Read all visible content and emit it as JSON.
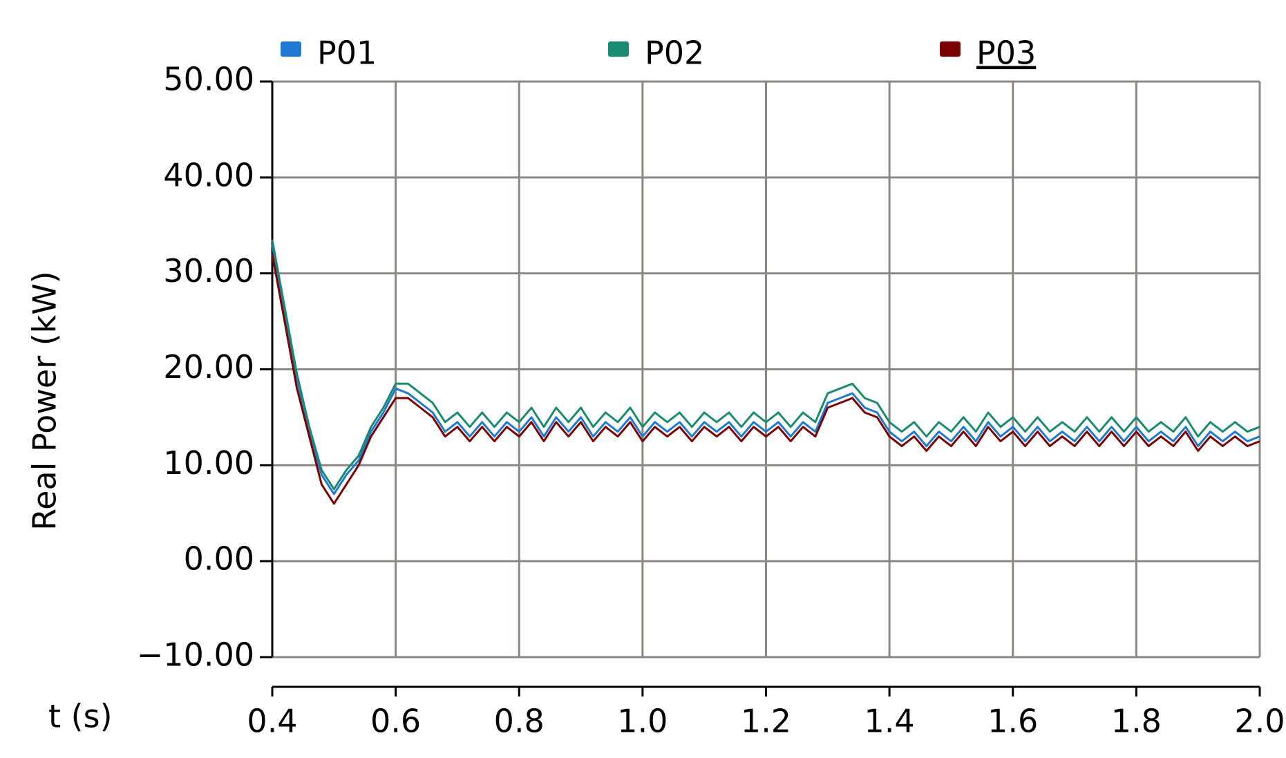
{
  "chart_data": {
    "type": "line",
    "ylabel": "Real Power (kW)",
    "xlabel": "t (s)",
    "x": [
      0.4,
      0.42,
      0.44,
      0.46,
      0.48,
      0.5,
      0.52,
      0.54,
      0.56,
      0.58,
      0.6,
      0.62,
      0.64,
      0.66,
      0.68,
      0.7,
      0.72,
      0.74,
      0.76,
      0.78,
      0.8,
      0.82,
      0.84,
      0.86,
      0.88,
      0.9,
      0.92,
      0.94,
      0.96,
      0.98,
      1.0,
      1.02,
      1.04,
      1.06,
      1.08,
      1.1,
      1.12,
      1.14,
      1.16,
      1.18,
      1.2,
      1.22,
      1.24,
      1.26,
      1.28,
      1.3,
      1.32,
      1.34,
      1.36,
      1.38,
      1.4,
      1.42,
      1.44,
      1.46,
      1.48,
      1.5,
      1.52,
      1.54,
      1.56,
      1.58,
      1.6,
      1.62,
      1.64,
      1.66,
      1.68,
      1.7,
      1.72,
      1.74,
      1.76,
      1.78,
      1.8,
      1.82,
      1.84,
      1.86,
      1.88,
      1.9,
      1.92,
      1.94,
      1.96,
      1.98,
      2.0
    ],
    "series": [
      {
        "name": "P01",
        "color": "#1f78d1",
        "values": [
          33,
          26,
          19,
          13.5,
          9,
          7,
          9,
          10.5,
          13.5,
          15.5,
          18,
          17.5,
          16.5,
          15.5,
          13.5,
          14.5,
          13,
          14.5,
          13,
          14.5,
          13.5,
          15,
          13,
          15,
          13.5,
          15,
          13,
          14.5,
          13.5,
          15,
          13,
          14.5,
          13.5,
          14.5,
          13,
          14.5,
          13.5,
          14.5,
          13,
          14.5,
          13.5,
          14.5,
          13,
          14.5,
          13.5,
          16.5,
          17,
          17.5,
          16,
          15.5,
          13.5,
          12.5,
          13.5,
          12,
          13.5,
          12.5,
          14,
          12.5,
          14.5,
          13,
          14,
          12.5,
          14,
          12.5,
          13.5,
          12.5,
          14,
          12.5,
          14,
          12.5,
          14,
          12.5,
          13.5,
          12.5,
          14,
          12,
          13.5,
          12.5,
          13.5,
          12.5,
          13
        ]
      },
      {
        "name": "P02",
        "color": "#1a8a70",
        "values": [
          33.5,
          26.5,
          19.5,
          14,
          9.5,
          7.5,
          9.5,
          11,
          14,
          16,
          18.5,
          18.5,
          17.5,
          16.5,
          14.5,
          15.5,
          14,
          15.5,
          14,
          15.5,
          14.5,
          16,
          14,
          16,
          14.5,
          16,
          14,
          15.5,
          14.5,
          16,
          14,
          15.5,
          14.5,
          15.5,
          14,
          15.5,
          14.5,
          15.5,
          14,
          15.5,
          14.5,
          15.5,
          14,
          15.5,
          14.5,
          17.5,
          18,
          18.5,
          17,
          16.5,
          14.5,
          13.5,
          14.5,
          13,
          14.5,
          13.5,
          15,
          13.5,
          15.5,
          14,
          15,
          13.5,
          15,
          13.5,
          14.5,
          13.5,
          15,
          13.5,
          15,
          13.5,
          15,
          13.5,
          14.5,
          13.5,
          15,
          13,
          14.5,
          13.5,
          14.5,
          13.5,
          14
        ]
      },
      {
        "name": "P03",
        "color": "#7b0000",
        "values": [
          32,
          25,
          18,
          13,
          8,
          6,
          8,
          10,
          13,
          15,
          17,
          17,
          16,
          15,
          13,
          14,
          12.5,
          14,
          12.5,
          14,
          13,
          14.5,
          12.5,
          14.5,
          13,
          14.5,
          12.5,
          14,
          13,
          14.5,
          12.5,
          14,
          13,
          14,
          12.5,
          14,
          13,
          14,
          12.5,
          14,
          13,
          14,
          12.5,
          14,
          13,
          16,
          16.5,
          17,
          15.5,
          15,
          13,
          12,
          13,
          11.5,
          13,
          12,
          13.5,
          12,
          14,
          12.5,
          13.5,
          12,
          13.5,
          12,
          13,
          12,
          13.5,
          12,
          13.5,
          12,
          13.5,
          12,
          13,
          12,
          13.5,
          11.5,
          13,
          12,
          13,
          12,
          12.5
        ]
      }
    ],
    "xlim": [
      0.4,
      2.0
    ],
    "xticks": [
      0.4,
      0.6,
      0.8,
      {
        "value": 1,
        "label": "1.0"
      },
      1.2,
      1.4,
      1.6,
      1.8,
      {
        "value": 2,
        "label": "2.0"
      }
    ],
    "ylim": [
      -10,
      50
    ],
    "yticks": [
      {
        "value": -10,
        "label": "−10.00"
      },
      {
        "value": 0,
        "label": "0.00"
      },
      {
        "value": 10,
        "label": "10.00"
      },
      {
        "value": 20,
        "label": "20.00"
      },
      {
        "value": 30,
        "label": "30.00"
      },
      {
        "value": 40,
        "label": "40.00"
      },
      {
        "value": 50,
        "label": "50.00"
      }
    ],
    "grid": true
  }
}
